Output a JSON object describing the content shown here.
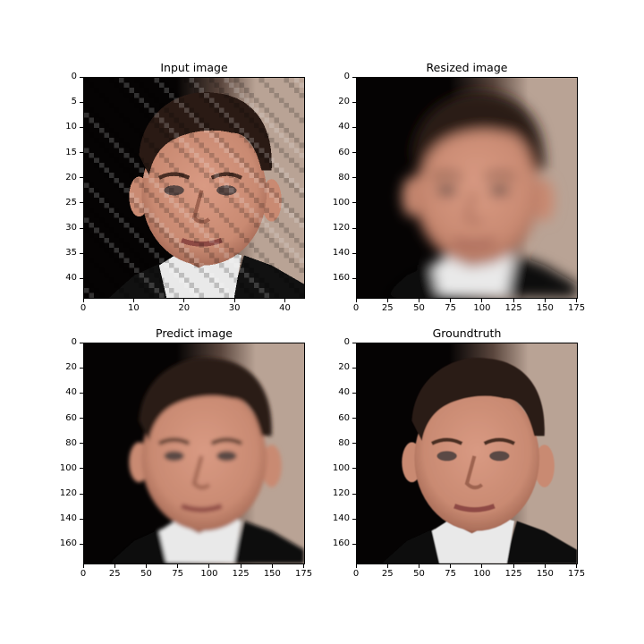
{
  "figure": {
    "panels": [
      {
        "id": "input",
        "title": "Input image",
        "x_ticks": [
          0,
          10,
          20,
          30,
          40
        ],
        "y_ticks": [
          0,
          5,
          10,
          15,
          20,
          25,
          30,
          35,
          40
        ],
        "extent": 44,
        "quality": "pixelated"
      },
      {
        "id": "resized",
        "title": "Resized image",
        "x_ticks": [
          0,
          25,
          50,
          75,
          100,
          125,
          150,
          175
        ],
        "y_ticks": [
          0,
          20,
          40,
          60,
          80,
          100,
          120,
          140,
          160
        ],
        "extent": 176,
        "quality": "blurred"
      },
      {
        "id": "predict",
        "title": "Predict image",
        "x_ticks": [
          0,
          25,
          50,
          75,
          100,
          125,
          150,
          175
        ],
        "y_ticks": [
          0,
          20,
          40,
          60,
          80,
          100,
          120,
          140,
          160
        ],
        "extent": 176,
        "quality": "soft"
      },
      {
        "id": "groundtruth",
        "title": "Groundtruth",
        "x_ticks": [
          0,
          25,
          50,
          75,
          100,
          125,
          150,
          175
        ],
        "y_ticks": [
          0,
          20,
          40,
          60,
          80,
          100,
          120,
          140,
          160
        ],
        "extent": 176,
        "quality": "sharp"
      }
    ]
  },
  "colors": {
    "background_left": "#050303",
    "background_right": "#b9a395",
    "skin": "#c98a72",
    "skin_shadow": "#9e6350",
    "hair": "#2a1a14",
    "shirt": "#e9e9e9",
    "jacket": "#111111"
  }
}
